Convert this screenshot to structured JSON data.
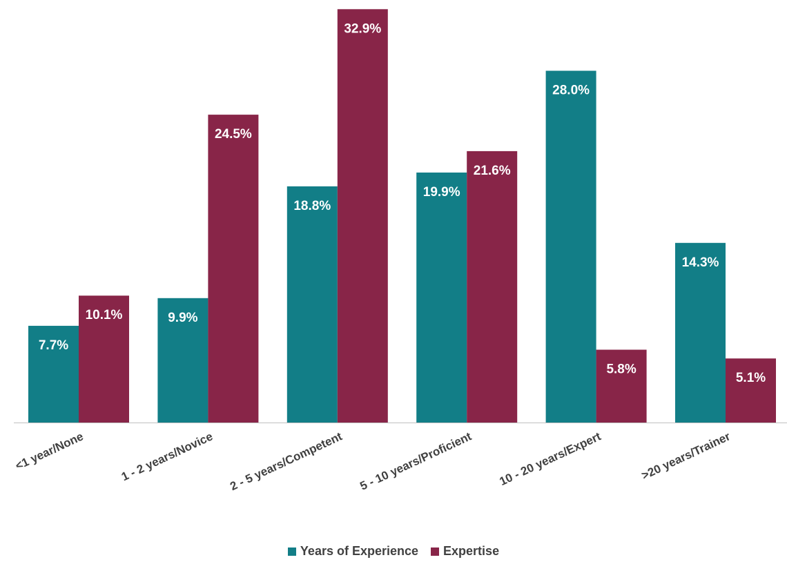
{
  "chart_data": {
    "type": "bar",
    "categories": [
      "<1 year/None",
      "1 - 2 years/Novice",
      "2 - 5 years/Competent",
      "5 - 10 years/Proficient",
      "10 - 20 years/Expert",
      ">20 years/Trainer"
    ],
    "series": [
      {
        "name": "Years of Experience",
        "values": [
          7.7,
          9.9,
          18.8,
          19.9,
          28.0,
          14.3
        ],
        "labels": [
          "7.7%",
          "9.9%",
          "18.8%",
          "19.9%",
          "28.0%",
          "14.3%"
        ],
        "color": "#127E87"
      },
      {
        "name": "Expertise",
        "values": [
          10.1,
          24.5,
          32.9,
          21.6,
          5.8,
          5.1
        ],
        "labels": [
          "10.1%",
          "24.5%",
          "32.9%",
          "21.6%",
          "5.8%",
          "5.1%"
        ],
        "color": "#882548"
      }
    ],
    "ylim": [
      0,
      33.3
    ],
    "grid": false,
    "legend_position": "bottom",
    "unit": "%"
  }
}
